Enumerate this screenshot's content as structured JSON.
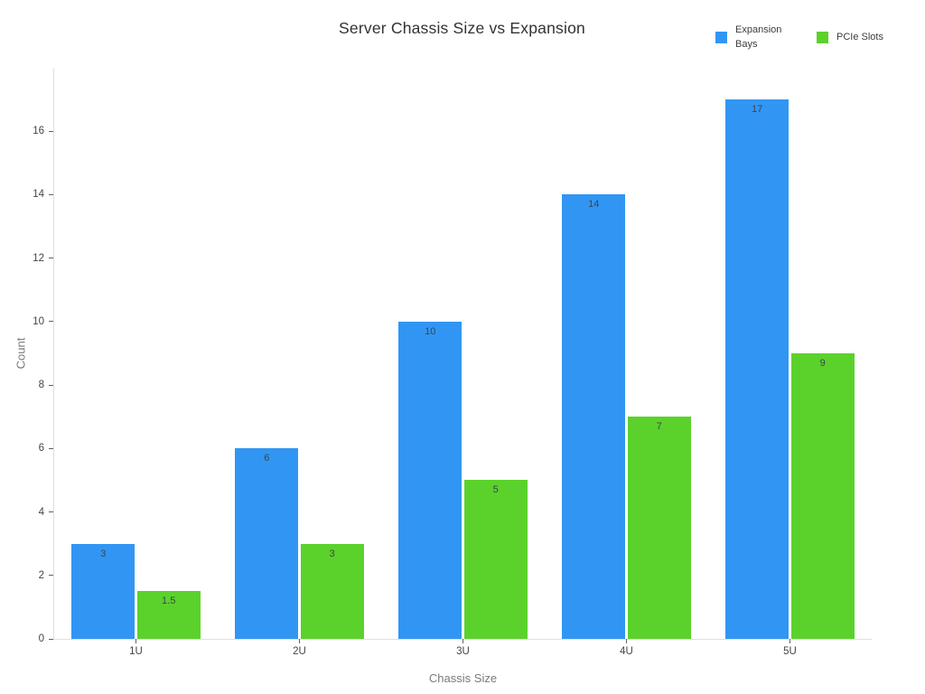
{
  "title": "Server Chassis Size vs Expansion",
  "legend": {
    "items": [
      {
        "label": "Expansion Bays",
        "color": "#3196f3"
      },
      {
        "label": "PCIe Slots",
        "color": "#5bd22b"
      }
    ]
  },
  "chart_data": {
    "type": "bar",
    "title": "Server Chassis Size vs Expansion",
    "categories": [
      "1U",
      "2U",
      "3U",
      "4U",
      "5U"
    ],
    "series": [
      {
        "name": "Expansion Bays",
        "color": "#3196f3",
        "values": [
          3,
          6,
          10,
          14,
          17
        ]
      },
      {
        "name": "PCIe Slots",
        "color": "#5bd22b",
        "values": [
          1.5,
          3,
          5,
          7,
          9
        ]
      }
    ],
    "xlabel": "Chassis Size",
    "ylabel": "Count",
    "ylim": [
      0,
      18
    ],
    "yticks": [
      0,
      2,
      4,
      6,
      8,
      10,
      12,
      14,
      16
    ],
    "grid": false,
    "bar_labels": "inside-top",
    "legend_position": "top-right",
    "background": "#ffffff"
  }
}
